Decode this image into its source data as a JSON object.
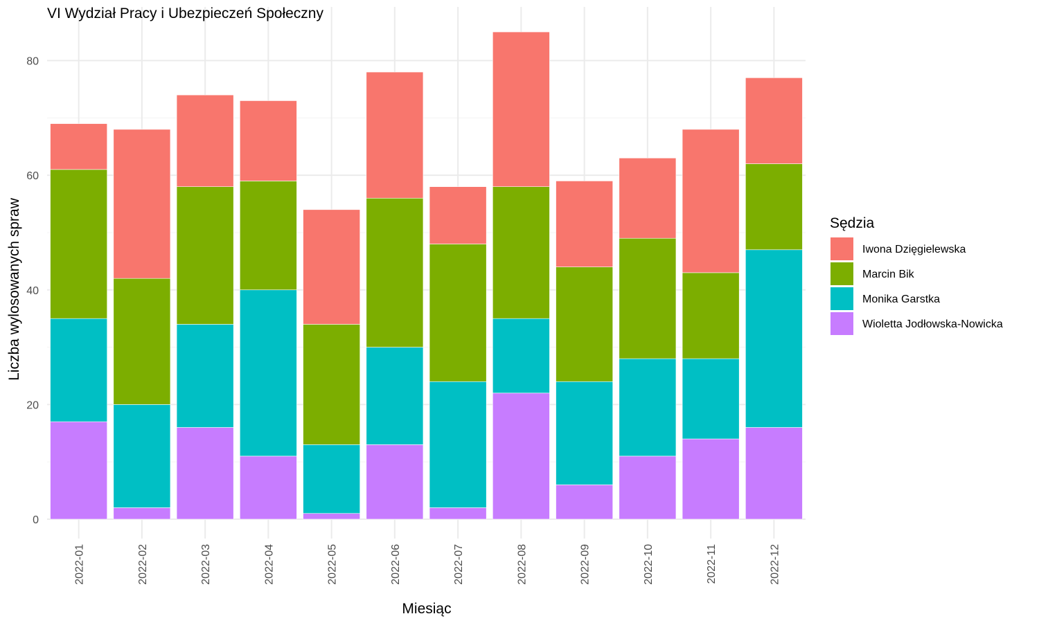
{
  "chart_data": {
    "type": "bar",
    "stacked": true,
    "title": "VI Wydział Pracy i Ubezpieczeń Społeczny",
    "xlabel": "Miesiąc",
    "ylabel": "Liczba wylosowanych spraw",
    "ylim": [
      0,
      85
    ],
    "yticks": [
      0,
      20,
      40,
      60,
      80
    ],
    "grid": true,
    "legend_title": "Sędzia",
    "legend_position": "right",
    "categories": [
      "2022-01",
      "2022-02",
      "2022-03",
      "2022-04",
      "2022-05",
      "2022-06",
      "2022-07",
      "2022-08",
      "2022-09",
      "2022-10",
      "2022-11",
      "2022-12"
    ],
    "series": [
      {
        "name": "Wioletta Jodłowska-Nowicka",
        "color": "#C77CFF",
        "values": [
          17,
          2,
          16,
          11,
          1,
          13,
          2,
          22,
          6,
          11,
          14,
          16
        ]
      },
      {
        "name": "Monika Garstka",
        "color": "#00BFC4",
        "values": [
          18,
          18,
          18,
          29,
          12,
          17,
          22,
          13,
          18,
          17,
          14,
          31
        ]
      },
      {
        "name": "Marcin Bik",
        "color": "#7CAE00",
        "values": [
          26,
          22,
          24,
          19,
          21,
          26,
          24,
          23,
          20,
          21,
          15,
          15
        ]
      },
      {
        "name": "Iwona Dzięgielewska",
        "color": "#F8766D",
        "values": [
          8,
          26,
          16,
          14,
          20,
          22,
          10,
          27,
          15,
          14,
          25,
          15
        ]
      }
    ],
    "legend_order": [
      "Iwona Dzięgielewska",
      "Marcin Bik",
      "Monika Garstka",
      "Wioletta Jodłowska-Nowicka"
    ]
  }
}
